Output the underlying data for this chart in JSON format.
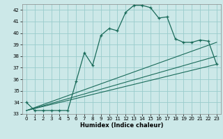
{
  "xlabel": "Humidex (Indice chaleur)",
  "bg_color": "#cce8e8",
  "grid_color": "#99cccc",
  "line_color": "#1a6b5a",
  "xlim": [
    -0.5,
    23.5
  ],
  "ylim": [
    33,
    42.5
  ],
  "xticks": [
    0,
    1,
    2,
    3,
    4,
    5,
    6,
    7,
    8,
    9,
    10,
    11,
    12,
    13,
    14,
    15,
    16,
    17,
    18,
    19,
    20,
    21,
    22,
    23
  ],
  "yticks": [
    33,
    34,
    35,
    36,
    37,
    38,
    39,
    40,
    41,
    42
  ],
  "main_x": [
    0,
    1,
    2,
    3,
    4,
    5,
    6,
    7,
    8,
    9,
    10,
    11,
    12,
    13,
    14,
    15,
    16,
    17,
    18,
    19,
    20,
    21,
    22,
    23
  ],
  "main_y": [
    34.0,
    33.3,
    33.3,
    33.3,
    33.3,
    33.3,
    35.8,
    38.3,
    37.2,
    39.8,
    40.4,
    40.2,
    41.8,
    42.4,
    42.4,
    42.2,
    41.3,
    41.4,
    39.5,
    39.2,
    39.2,
    39.4,
    39.3,
    37.3
  ],
  "line2_x": [
    0,
    23
  ],
  "line2_y": [
    33.3,
    37.3
  ],
  "line3_x": [
    0,
    23
  ],
  "line3_y": [
    33.3,
    38.0
  ],
  "line4_x": [
    0,
    23
  ],
  "line4_y": [
    33.3,
    39.2
  ]
}
